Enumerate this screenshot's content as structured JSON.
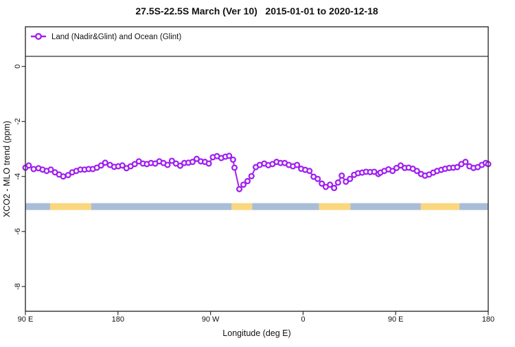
{
  "window": {
    "title": "27.5S-22.5S March (Ver 10)   2015-01-01 to 2020-12-18"
  },
  "chart_data": {
    "type": "line",
    "title": "27.5S-22.5S March (Ver 10)   2015-01-01 to 2020-12-18",
    "xlabel": "Longitude (deg E)",
    "ylabel": "XCO2 - MLO trend (ppm)",
    "xlim": [
      90,
      540
    ],
    "ylim": [
      -8.9,
      1.44
    ],
    "grid": false,
    "x_ticks": [
      {
        "lon": 90,
        "label": "90 E"
      },
      {
        "lon": 180,
        "label": "180"
      },
      {
        "lon": 270,
        "label": "90 W"
      },
      {
        "lon": 360,
        "label": "0"
      },
      {
        "lon": 450,
        "label": "90 E"
      },
      {
        "lon": 540,
        "label": "180"
      }
    ],
    "y_ticks": [
      {
        "value": 0,
        "label": "0"
      },
      {
        "value": -2,
        "label": "-2"
      },
      {
        "value": -4,
        "label": "-4"
      },
      {
        "value": -6,
        "label": "-6"
      },
      {
        "value": -8,
        "label": "-8"
      }
    ],
    "legend": {
      "position": "top-left-band",
      "label": "Land (Nadir&Glint) and Ocean (Glint)",
      "marker": "open-circle-on-line",
      "color": "#A020F0"
    },
    "series": [
      {
        "name": "Land (Nadir&Glint) and Ocean (Glint)",
        "color": "#A020F0",
        "marker": "open-circle",
        "points": [
          [
            90,
            -3.68
          ],
          [
            93.3,
            -3.6
          ],
          [
            98,
            -3.73
          ],
          [
            102.7,
            -3.7
          ],
          [
            106.7,
            -3.75
          ],
          [
            110.7,
            -3.8
          ],
          [
            114.7,
            -3.75
          ],
          [
            118.8,
            -3.85
          ],
          [
            122.8,
            -3.93
          ],
          [
            126.8,
            -4.0
          ],
          [
            131.5,
            -3.95
          ],
          [
            135.5,
            -3.85
          ],
          [
            139.5,
            -3.8
          ],
          [
            143.5,
            -3.75
          ],
          [
            147.5,
            -3.75
          ],
          [
            151.5,
            -3.73
          ],
          [
            155.5,
            -3.73
          ],
          [
            159.5,
            -3.68
          ],
          [
            163.6,
            -3.6
          ],
          [
            167.6,
            -3.5
          ],
          [
            172.2,
            -3.58
          ],
          [
            176.3,
            -3.65
          ],
          [
            180.3,
            -3.63
          ],
          [
            184.3,
            -3.6
          ],
          [
            188.3,
            -3.7
          ],
          [
            192.3,
            -3.63
          ],
          [
            196.3,
            -3.55
          ],
          [
            200.3,
            -3.45
          ],
          [
            204.3,
            -3.53
          ],
          [
            208.1,
            -3.55
          ],
          [
            212.1,
            -3.51
          ],
          [
            216.2,
            -3.53
          ],
          [
            220.2,
            -3.45
          ],
          [
            224.2,
            -3.51
          ],
          [
            228.2,
            -3.58
          ],
          [
            232.4,
            -3.43
          ],
          [
            236.4,
            -3.53
          ],
          [
            240.5,
            -3.61
          ],
          [
            244.5,
            -3.51
          ],
          [
            248.5,
            -3.5
          ],
          [
            252.5,
            -3.47
          ],
          [
            256.5,
            -3.36
          ],
          [
            260.5,
            -3.45
          ],
          [
            264.5,
            -3.47
          ],
          [
            268.3,
            -3.53
          ],
          [
            272.3,
            -3.3
          ],
          [
            276.3,
            -3.26
          ],
          [
            280.4,
            -3.33
          ],
          [
            284.4,
            -3.28
          ],
          [
            288.1,
            -3.25
          ],
          [
            291.9,
            -3.39
          ],
          [
            293.3,
            -3.68
          ],
          [
            298,
            -4.46
          ],
          [
            302,
            -4.3
          ],
          [
            306,
            -4.17
          ],
          [
            309.8,
            -3.99
          ],
          [
            314,
            -3.66
          ],
          [
            317.8,
            -3.58
          ],
          [
            322.2,
            -3.53
          ],
          [
            326.2,
            -3.59
          ],
          [
            330.2,
            -3.55
          ],
          [
            334.2,
            -3.47
          ],
          [
            338.1,
            -3.51
          ],
          [
            342.1,
            -3.51
          ],
          [
            346.1,
            -3.58
          ],
          [
            350.1,
            -3.63
          ],
          [
            354.1,
            -3.58
          ],
          [
            358.1,
            -3.72
          ],
          [
            362.1,
            -3.76
          ],
          [
            366.2,
            -3.8
          ],
          [
            370.2,
            -4.01
          ],
          [
            374.2,
            -4.09
          ],
          [
            378.2,
            -4.26
          ],
          [
            382,
            -4.38
          ],
          [
            386.2,
            -4.3
          ],
          [
            390.2,
            -4.42
          ],
          [
            394,
            -4.22
          ],
          [
            397.6,
            -3.97
          ],
          [
            401.6,
            -4.19
          ],
          [
            405.6,
            -4.09
          ],
          [
            409.6,
            -3.94
          ],
          [
            413.4,
            -3.88
          ],
          [
            417.4,
            -3.86
          ],
          [
            421.2,
            -3.83
          ],
          [
            425.2,
            -3.84
          ],
          [
            429.2,
            -3.83
          ],
          [
            433.2,
            -3.91
          ],
          [
            435.2,
            -3.86
          ],
          [
            439,
            -3.8
          ],
          [
            443,
            -3.74
          ],
          [
            447,
            -3.8
          ],
          [
            450.9,
            -3.69
          ],
          [
            454.9,
            -3.6
          ],
          [
            458.9,
            -3.69
          ],
          [
            462.6,
            -3.68
          ],
          [
            466.7,
            -3.72
          ],
          [
            470.7,
            -3.8
          ],
          [
            474.7,
            -3.91
          ],
          [
            478.5,
            -3.97
          ],
          [
            482.5,
            -3.93
          ],
          [
            486.5,
            -3.86
          ],
          [
            490.3,
            -3.8
          ],
          [
            494.3,
            -3.76
          ],
          [
            498.1,
            -3.72
          ],
          [
            502.1,
            -3.69
          ],
          [
            506.1,
            -3.68
          ],
          [
            509.9,
            -3.66
          ],
          [
            513.9,
            -3.55
          ],
          [
            517.9,
            -3.47
          ],
          [
            521.7,
            -3.63
          ],
          [
            525.7,
            -3.69
          ],
          [
            529.8,
            -3.66
          ],
          [
            533.8,
            -3.58
          ],
          [
            537.5,
            -3.51
          ],
          [
            540,
            -3.55
          ]
        ]
      }
    ],
    "surface_band": {
      "note": "horizontal land/ocean indicator strip drawn at about -5 ppm",
      "y_range": [
        -5.22,
        -4.97
      ],
      "land_color": "#FAD77E",
      "ocean_color": "#A9BDD8",
      "segments": [
        {
          "from": 90,
          "to": 114,
          "type": "ocean"
        },
        {
          "from": 114,
          "to": 154,
          "type": "land"
        },
        {
          "from": 154,
          "to": 290.5,
          "type": "ocean"
        },
        {
          "from": 290.5,
          "to": 310.5,
          "type": "land"
        },
        {
          "from": 310.5,
          "to": 375.5,
          "type": "ocean"
        },
        {
          "from": 375.5,
          "to": 406,
          "type": "land"
        },
        {
          "from": 406,
          "to": 474.5,
          "type": "ocean"
        },
        {
          "from": 474.5,
          "to": 512,
          "type": "land"
        },
        {
          "from": 512,
          "to": 540,
          "type": "ocean"
        }
      ]
    },
    "frame_color": "#2e2e2e"
  }
}
